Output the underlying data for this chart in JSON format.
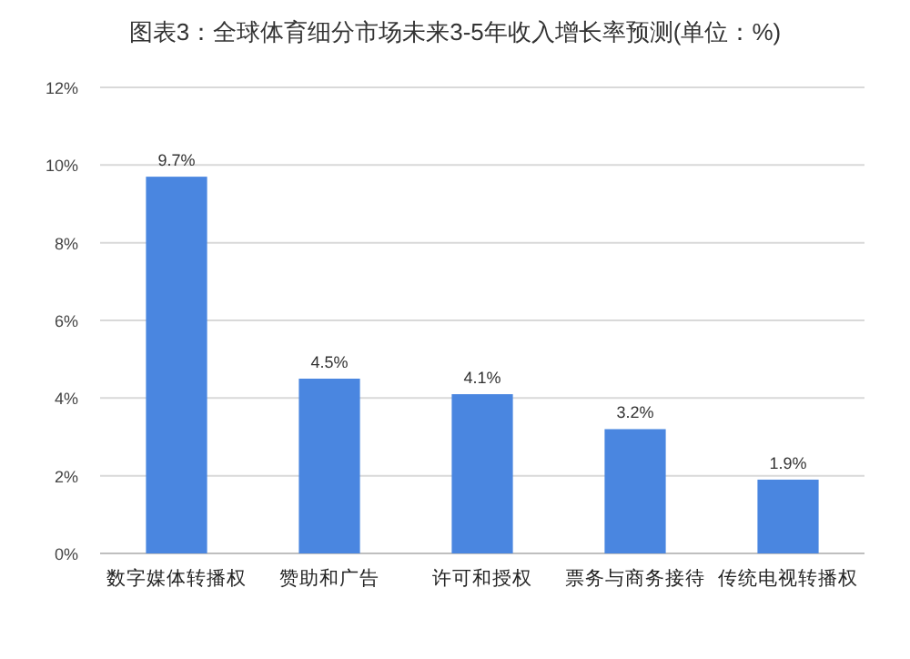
{
  "chart_data": {
    "type": "bar",
    "title": "图表3：全球体育细分市场未来3-5年收入增长率预测(单位：%)",
    "categories": [
      "数字媒体转播权",
      "赞助和广告",
      "许可和授权",
      "票务与商务接待",
      "传统电视转播权"
    ],
    "values": [
      9.7,
      4.5,
      4.1,
      3.2,
      1.9
    ],
    "value_labels": [
      "9.7%",
      "4.5%",
      "4.1%",
      "3.2%",
      "1.9%"
    ],
    "color": "#4a86e0",
    "ylim": [
      0,
      12
    ],
    "yticks": [
      {
        "value": 0,
        "label": "0%"
      },
      {
        "value": 2,
        "label": "2%"
      },
      {
        "value": 4,
        "label": "4%"
      },
      {
        "value": 6,
        "label": "6%"
      },
      {
        "value": 8,
        "label": "8%"
      },
      {
        "value": 10,
        "label": "10%"
      },
      {
        "value": 12,
        "label": "12%"
      }
    ],
    "grid": "y"
  }
}
